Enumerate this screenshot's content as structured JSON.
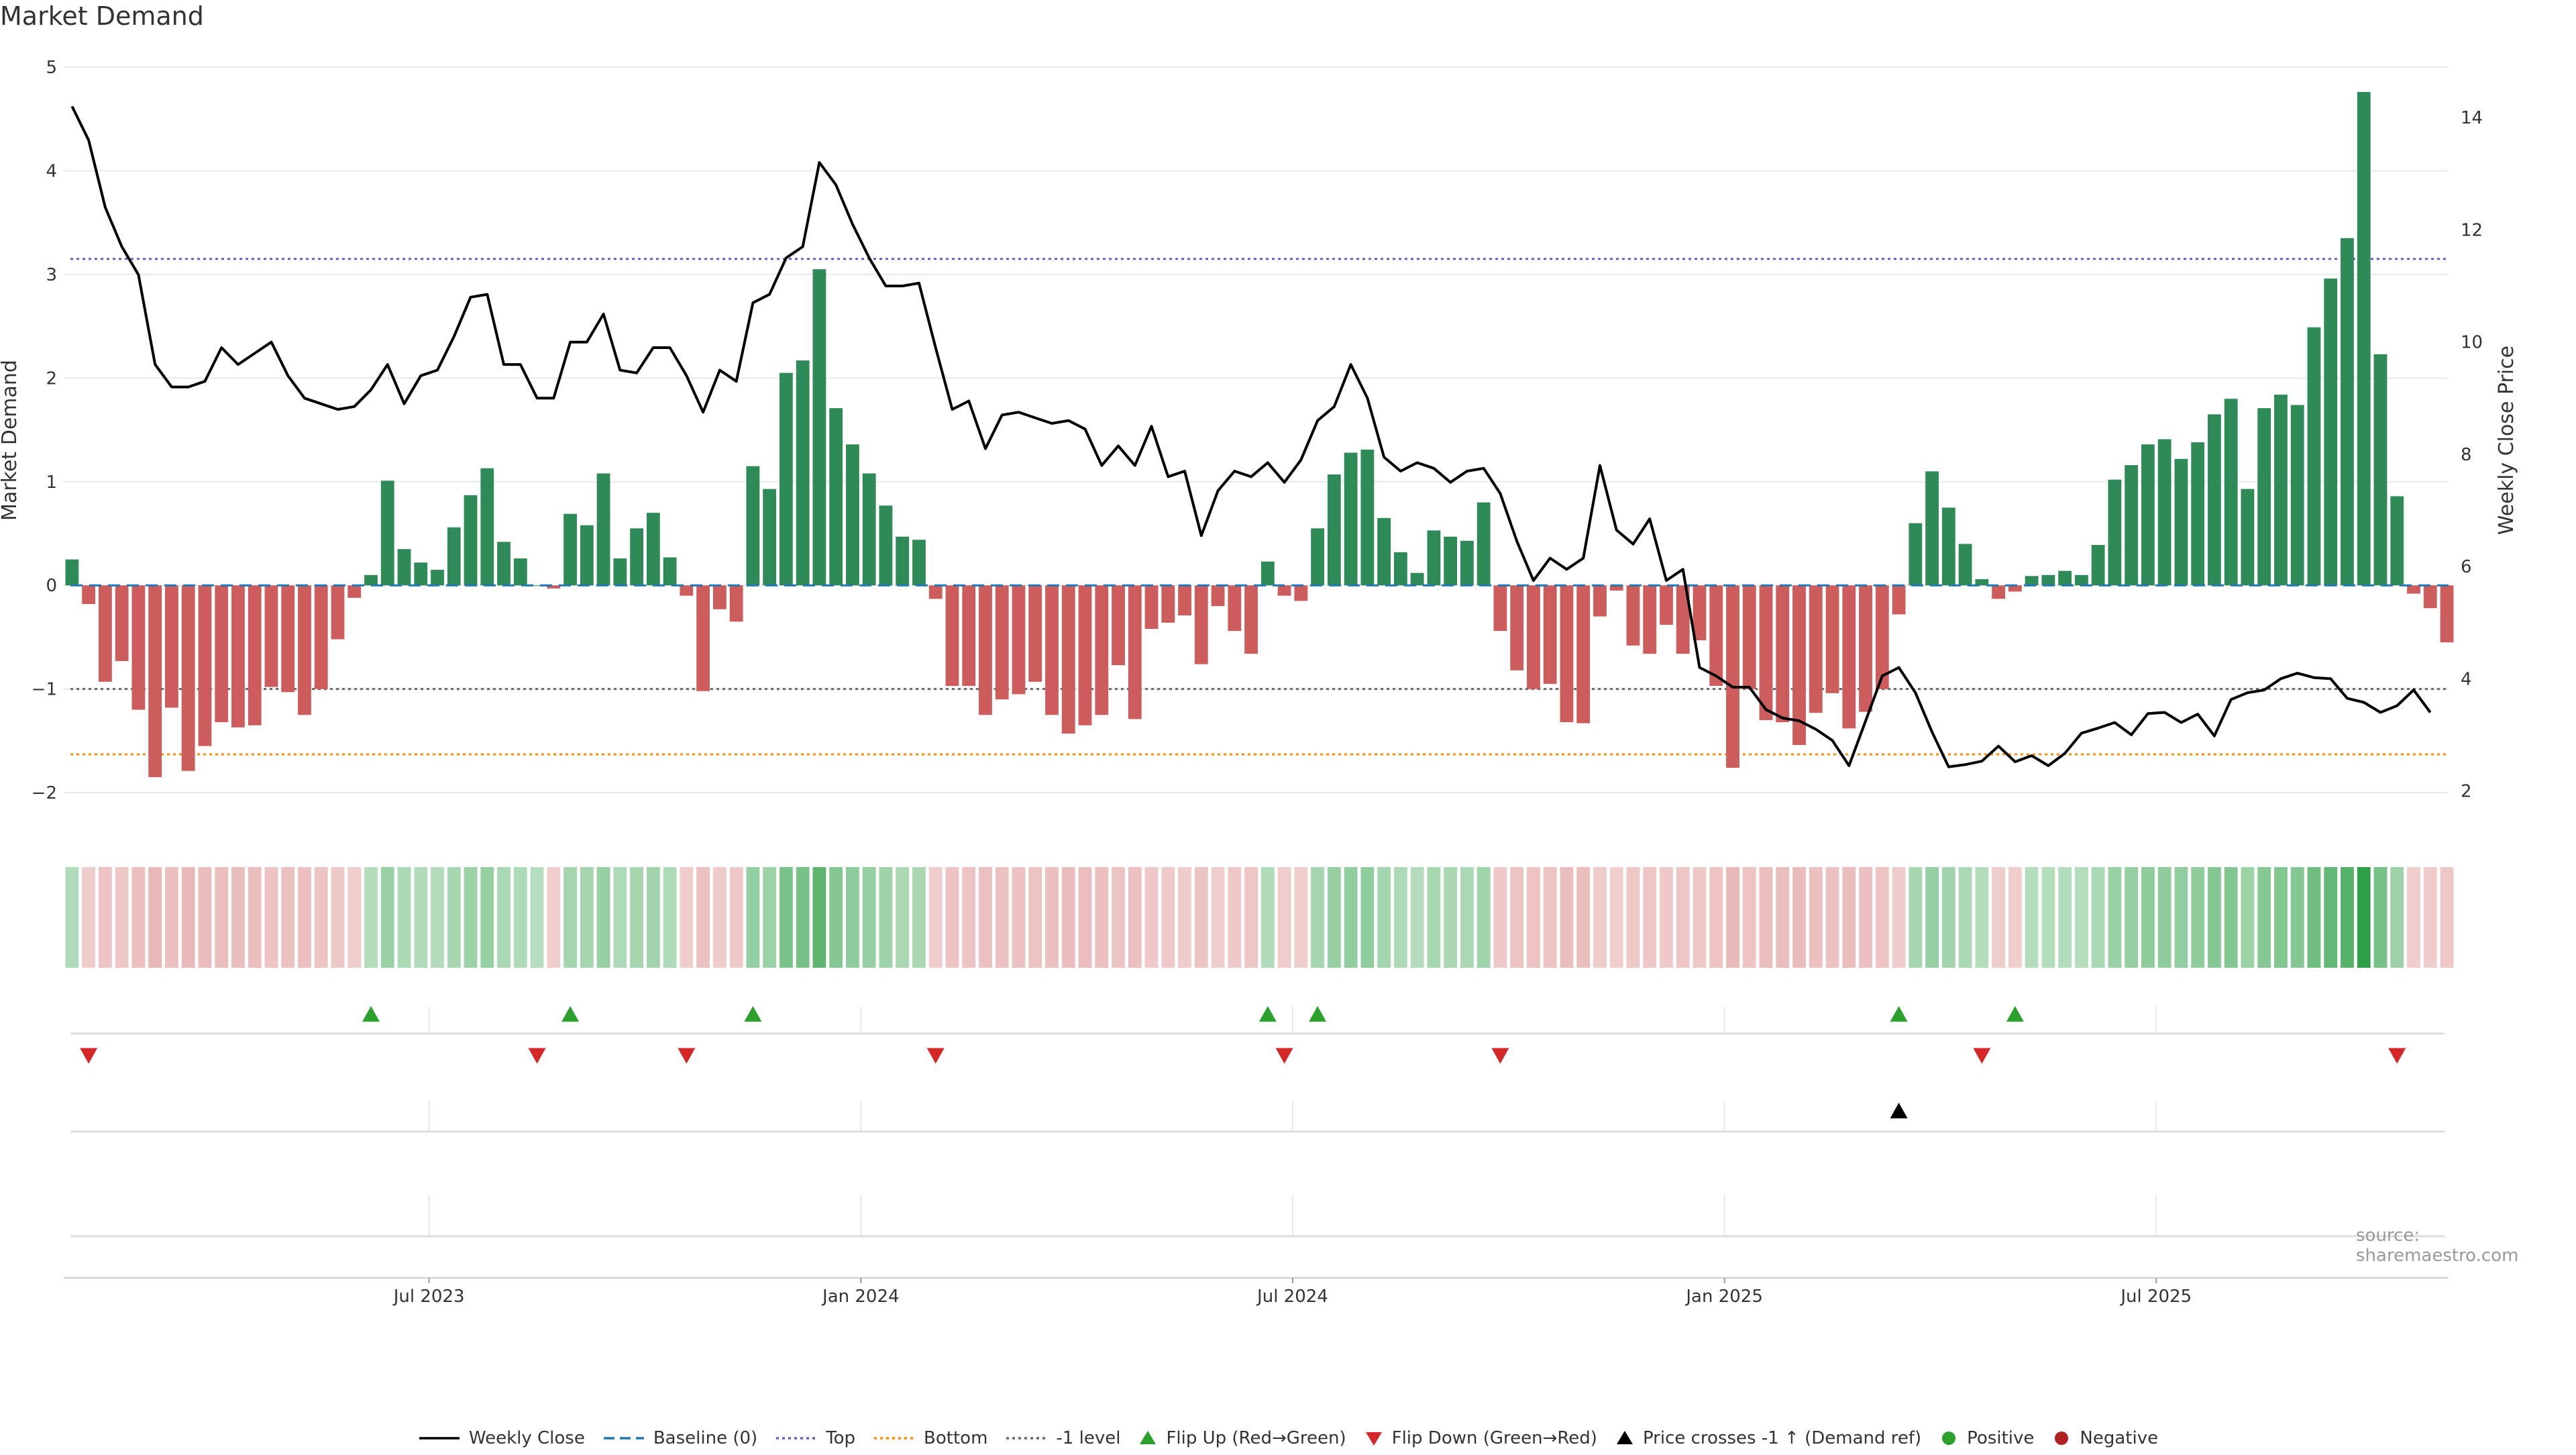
{
  "title": "Market Demand",
  "source": "source: sharemaestro.com",
  "colors": {
    "positive": "#2e8b57",
    "negative": "#cd5c5c",
    "price": "#000000",
    "baseline": "#1f77b4",
    "top": "#6a5acd",
    "bottom": "#ff8c00",
    "minus1": "#666666",
    "flip_up": "#2ca02c",
    "flip_down": "#d62728",
    "cross": "#000000",
    "legend_positive": "#2ca02c",
    "legend_negative": "#b22222"
  },
  "legend": [
    {
      "label": "Weekly Close",
      "kind": "line-solid",
      "color": "#000000"
    },
    {
      "label": "Baseline (0)",
      "kind": "line-dash",
      "color": "#1f77b4"
    },
    {
      "label": "Top",
      "kind": "line-dot",
      "color": "#6a5acd"
    },
    {
      "label": "Bottom",
      "kind": "line-dot",
      "color": "#ff8c00"
    },
    {
      "label": "-1 level",
      "kind": "line-dot",
      "color": "#666666"
    },
    {
      "label": "Flip Up (Red→Green)",
      "kind": "tri-up",
      "color": "#2ca02c"
    },
    {
      "label": "Flip Down (Green→Red)",
      "kind": "tri-down",
      "color": "#d62728"
    },
    {
      "label": "Price crosses -1 ↑ (Demand ref)",
      "kind": "tri-up",
      "color": "#000000"
    },
    {
      "label": "Positive",
      "kind": "dot",
      "color": "#2ca02c"
    },
    {
      "label": "Negative",
      "kind": "dot",
      "color": "#b22222"
    }
  ],
  "chart_data": {
    "type": "bar",
    "title": "Market Demand",
    "ylabel_left": "Market Demand",
    "ylabel_right": "Weekly Close Price",
    "ylim_left": [
      -2.2,
      5.0
    ],
    "yticks_left": [
      -2,
      -1,
      0,
      1,
      2,
      3,
      4,
      5
    ],
    "yticks_left_labels": [
      "−2",
      "−1",
      "0",
      "1",
      "2",
      "3",
      "4",
      "5"
    ],
    "ylim_right": [
      1.6,
      14.9
    ],
    "yticks_right": [
      2,
      4,
      6,
      8,
      10,
      12,
      14
    ],
    "xlim": [
      0,
      143.6
    ],
    "xticks": [
      {
        "index": 22,
        "label": "Jul 2023"
      },
      {
        "index": 48,
        "label": "Jan 2024"
      },
      {
        "index": 74,
        "label": "Jul 2024"
      },
      {
        "index": 100,
        "label": "Jan 2025"
      },
      {
        "index": 126,
        "label": "Jul 2025"
      }
    ],
    "reference_lines": {
      "baseline": 0,
      "top": 3.15,
      "bottom": -1.63,
      "minus1": -1.0
    },
    "demand": [
      0.25,
      -0.18,
      -0.93,
      -0.73,
      -1.2,
      -1.85,
      -1.18,
      -1.79,
      -1.55,
      -1.32,
      -1.37,
      -1.35,
      -0.98,
      -1.03,
      -1.25,
      -1.0,
      -0.52,
      -0.12,
      0.1,
      1.01,
      0.35,
      0.22,
      0.15,
      0.56,
      0.87,
      1.13,
      0.42,
      0.26,
      0.0,
      -0.03,
      0.69,
      0.58,
      1.08,
      0.26,
      0.55,
      0.7,
      0.27,
      -0.1,
      -1.02,
      -0.23,
      -0.35,
      1.15,
      0.93,
      2.05,
      2.17,
      3.05,
      1.71,
      1.36,
      1.08,
      0.77,
      0.47,
      0.44,
      -0.13,
      -0.97,
      -0.97,
      -1.25,
      -1.1,
      -1.05,
      -0.93,
      -1.25,
      -1.43,
      -1.35,
      -1.25,
      -0.77,
      -1.29,
      -0.42,
      -0.36,
      -0.29,
      -0.76,
      -0.2,
      -0.44,
      -0.66,
      0.23,
      -0.1,
      -0.15,
      0.55,
      1.07,
      1.28,
      1.31,
      0.65,
      0.32,
      0.12,
      0.53,
      0.47,
      0.43,
      0.8,
      -0.44,
      -0.82,
      -1.0,
      -0.95,
      -1.32,
      -1.33,
      -0.3,
      -0.05,
      -0.58,
      -0.66,
      -0.38,
      -0.66,
      -0.53,
      -0.97,
      -1.76,
      -1.0,
      -1.3,
      -1.32,
      -1.54,
      -1.23,
      -1.04,
      -1.38,
      -1.22,
      -1.0,
      -0.28,
      0.6,
      1.1,
      0.75,
      0.4,
      0.06,
      -0.13,
      -0.06,
      0.09,
      0.1,
      0.14,
      0.1,
      0.39,
      1.02,
      1.16,
      1.36,
      1.41,
      1.22,
      1.38,
      1.65,
      1.8,
      0.93,
      1.71,
      1.84,
      1.74,
      2.49,
      2.96,
      3.35,
      4.76,
      2.23,
      0.86,
      -0.08,
      -0.22,
      -0.55
    ],
    "weekly_close": [
      14.2,
      13.6,
      12.4,
      11.7,
      11.2,
      9.6,
      9.2,
      9.2,
      9.3,
      9.9,
      9.6,
      9.8,
      10.0,
      9.4,
      9.0,
      8.9,
      8.8,
      8.85,
      9.15,
      9.6,
      8.9,
      9.4,
      9.5,
      10.1,
      10.8,
      10.85,
      9.6,
      9.6,
      9.0,
      9.0,
      10.0,
      10.0,
      10.5,
      9.5,
      9.45,
      9.9,
      9.9,
      9.4,
      8.75,
      9.5,
      9.3,
      10.7,
      10.85,
      11.5,
      11.7,
      13.2,
      12.8,
      12.1,
      11.5,
      11.0,
      11.0,
      11.05,
      9.9,
      8.8,
      8.95,
      8.1,
      8.7,
      8.75,
      8.65,
      8.55,
      8.6,
      8.45,
      7.8,
      8.15,
      7.8,
      8.5,
      7.6,
      7.7,
      6.55,
      7.35,
      7.7,
      7.6,
      7.85,
      7.5,
      7.9,
      8.6,
      8.85,
      9.6,
      9.0,
      7.95,
      7.7,
      7.85,
      7.75,
      7.5,
      7.7,
      7.75,
      7.3,
      6.45,
      5.75,
      6.15,
      5.95,
      6.15,
      7.8,
      6.65,
      6.4,
      6.85,
      5.75,
      5.95,
      4.2,
      4.05,
      3.85,
      3.85,
      3.45,
      3.3,
      3.25,
      3.1,
      2.9,
      2.45,
      3.25,
      4.05,
      4.2,
      3.75,
      3.05,
      2.43,
      2.47,
      2.53,
      2.8,
      2.52,
      2.63,
      2.45,
      2.67,
      3.03,
      3.12,
      3.22,
      3.0,
      3.38,
      3.4,
      3.22,
      3.37,
      2.98,
      3.63,
      3.75,
      3.8,
      4.0,
      4.1,
      4.02,
      4.0,
      3.65,
      3.58,
      3.4,
      3.52,
      3.8,
      3.4
    ],
    "flip_up_indices": [
      18,
      30,
      41,
      72,
      75,
      110,
      117
    ],
    "flip_down_indices": [
      1,
      28,
      37,
      52,
      73,
      86,
      115,
      140
    ],
    "price_cross_indices": [
      110
    ]
  }
}
